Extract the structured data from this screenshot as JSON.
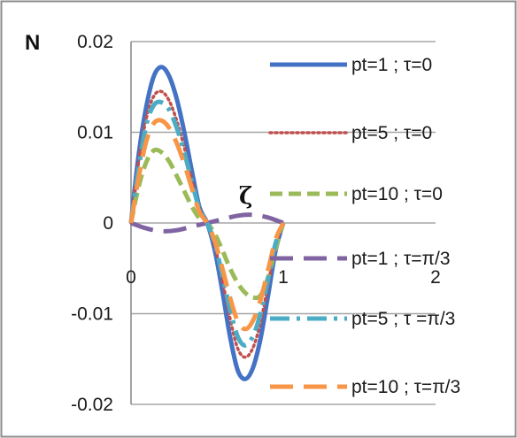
{
  "chart_data": {
    "type": "line",
    "ylabel": "N",
    "xlabel": "ζ",
    "xlim": [
      0,
      2
    ],
    "ylim": [
      -0.02,
      0.02
    ],
    "x_ticks": [
      "0",
      "1",
      "2"
    ],
    "y_ticks": [
      "0.02",
      "0.01",
      "0",
      "-0.01",
      "-0.02"
    ],
    "y_tick_values": [
      0.02,
      0.01,
      0,
      -0.01,
      -0.02
    ],
    "x_tick_values": [
      0,
      1,
      2
    ],
    "grid": "horizontal",
    "legend_position": "right",
    "series": [
      {
        "name": "pt=1 ; τ=0",
        "color": "#4472C4",
        "dash": "solid",
        "x": [
          0,
          0.05,
          0.1,
          0.15,
          0.2,
          0.25,
          0.3,
          0.35,
          0.4,
          0.45,
          0.5,
          0.55,
          0.6,
          0.65,
          0.7,
          0.75,
          0.8,
          0.85,
          0.9,
          0.95,
          1.0
        ],
        "y": [
          0,
          0.0075,
          0.0128,
          0.0162,
          0.0172,
          0.0162,
          0.0137,
          0.01,
          0.0057,
          0.0017,
          0,
          -0.003,
          -0.0075,
          -0.0125,
          -0.0162,
          -0.0172,
          -0.016,
          -0.0128,
          -0.008,
          -0.003,
          0
        ]
      },
      {
        "name": "pt=5 ; τ=0",
        "color": "#C0504D",
        "dash": "dotted",
        "x": [
          0,
          0.05,
          0.1,
          0.15,
          0.2,
          0.25,
          0.3,
          0.35,
          0.4,
          0.45,
          0.5,
          0.55,
          0.6,
          0.65,
          0.7,
          0.75,
          0.8,
          0.85,
          0.9,
          0.95,
          1.0
        ],
        "y": [
          0,
          0.0068,
          0.0115,
          0.014,
          0.0145,
          0.0135,
          0.0113,
          0.0083,
          0.0048,
          0.0015,
          0,
          -0.0025,
          -0.0063,
          -0.0105,
          -0.0138,
          -0.0148,
          -0.0138,
          -0.011,
          -0.0068,
          -0.0025,
          0
        ]
      },
      {
        "name": "pt=10 ; τ=0",
        "color": "#9BBB59",
        "dash": "dashed",
        "x": [
          0,
          0.05,
          0.1,
          0.15,
          0.2,
          0.25,
          0.3,
          0.35,
          0.4,
          0.45,
          0.5,
          0.55,
          0.6,
          0.65,
          0.7,
          0.75,
          0.8,
          0.85,
          0.9,
          0.95,
          1.0
        ],
        "y": [
          0,
          0.004,
          0.0067,
          0.008,
          0.0078,
          0.0068,
          0.0052,
          0.0035,
          0.0018,
          0.0005,
          0,
          -0.0012,
          -0.003,
          -0.005,
          -0.0066,
          -0.0077,
          -0.0082,
          -0.008,
          -0.006,
          -0.0028,
          0
        ]
      },
      {
        "name": "pt=1 ; τ=π/3",
        "color": "#8064A2",
        "dash": "longdash",
        "x": [
          0,
          0.1,
          0.2,
          0.3,
          0.4,
          0.5,
          0.6,
          0.7,
          0.8,
          0.9,
          1.0
        ],
        "y": [
          0,
          -0.0006,
          -0.0009,
          -0.0008,
          -0.0004,
          0,
          0.0004,
          0.0008,
          0.0009,
          0.0006,
          0
        ]
      },
      {
        "name": "pt=5 ; τ =π/3",
        "color": "#4BACC6",
        "dash": "dashdot",
        "x": [
          0,
          0.05,
          0.1,
          0.15,
          0.2,
          0.25,
          0.3,
          0.35,
          0.4,
          0.45,
          0.5,
          0.55,
          0.6,
          0.65,
          0.7,
          0.75,
          0.8,
          0.85,
          0.9,
          0.95,
          1.0
        ],
        "y": [
          0,
          0.006,
          0.0108,
          0.013,
          0.0133,
          0.0125,
          0.0105,
          0.0078,
          0.0045,
          0.0015,
          0,
          -0.0022,
          -0.0058,
          -0.0095,
          -0.0125,
          -0.0135,
          -0.0125,
          -0.01,
          -0.0062,
          -0.0022,
          0
        ]
      },
      {
        "name": "pt=10 ; τ=π/3",
        "color": "#F79646",
        "dash": "longdash",
        "x": [
          0,
          0.05,
          0.1,
          0.15,
          0.2,
          0.25,
          0.3,
          0.35,
          0.4,
          0.45,
          0.5,
          0.55,
          0.6,
          0.65,
          0.7,
          0.75,
          0.8,
          0.85,
          0.9,
          0.95,
          1.0
        ],
        "y": [
          0,
          0.005,
          0.009,
          0.011,
          0.0113,
          0.0105,
          0.0088,
          0.0065,
          0.0038,
          0.0012,
          0,
          -0.002,
          -0.005,
          -0.0082,
          -0.0108,
          -0.0117,
          -0.0108,
          -0.0085,
          -0.0052,
          -0.0018,
          0
        ]
      }
    ]
  }
}
